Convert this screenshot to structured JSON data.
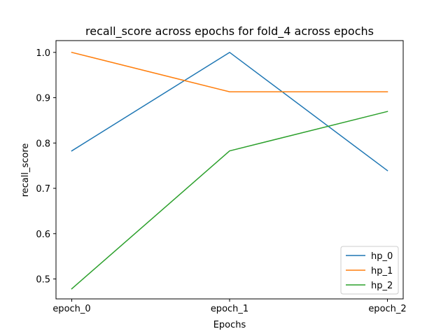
{
  "chart_data": {
    "type": "line",
    "title": "recall_score across epochs for fold_4 across epochs",
    "xlabel": "Epochs",
    "ylabel": "recall_score",
    "categories": [
      "epoch_0",
      "epoch_1",
      "epoch_2"
    ],
    "ylim": [
      0.456,
      1.026
    ],
    "yticks": [
      0.5,
      0.6,
      0.7,
      0.8,
      0.9,
      1.0
    ],
    "ytick_labels": [
      "0.5",
      "0.6",
      "0.7",
      "0.8",
      "0.9",
      "1.0"
    ],
    "grid": false,
    "legend_position": "lower-right",
    "series": [
      {
        "name": "hp_0",
        "color": "#1f77b4",
        "values": [
          0.7826,
          1.0,
          0.7391
        ]
      },
      {
        "name": "hp_1",
        "color": "#ff7f0e",
        "values": [
          1.0,
          0.913,
          0.913
        ]
      },
      {
        "name": "hp_2",
        "color": "#2ca02c",
        "values": [
          0.4783,
          0.7826,
          0.8696
        ]
      }
    ]
  }
}
